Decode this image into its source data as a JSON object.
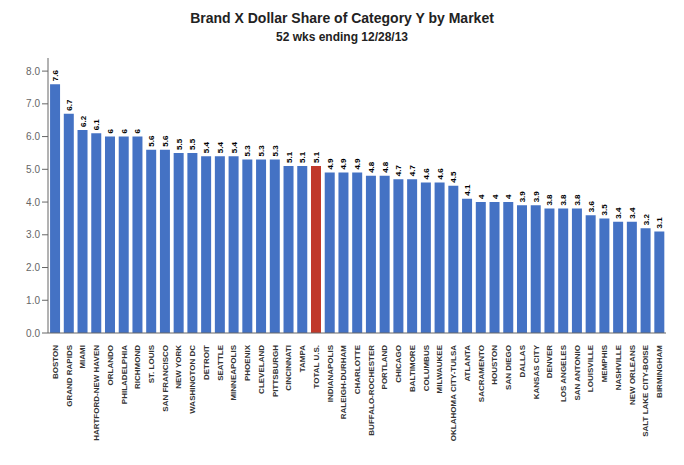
{
  "chart_data": {
    "type": "bar",
    "title": "Brand X Dollar Share of Category Y by Market",
    "subtitle": "52 wks ending 12/28/13",
    "categories": [
      "BOSTON",
      "GRAND RAPIDS",
      "MIAMI",
      "HARTFORD-NEW HAVEN",
      "ORLANDO",
      "PHILADELPHIA",
      "RICHMOND",
      "ST. LOUIS",
      "SAN FRANCISCO",
      "NEW YORK",
      "WASHINGTON DC",
      "DETROIT",
      "SEATTLE",
      "MINNEAPOLIS",
      "PHOENIX",
      "CLEVELAND",
      "PITTSBURGH",
      "CINCINNATI",
      "TAMPA",
      "TOTAL U.S.",
      "INDIANAPOLIS",
      "RALEIGH-DURHAM",
      "CHARLOTTE",
      "BUFFALO-ROCHESTER",
      "PORTLAND",
      "CHICAGO",
      "BALTIMORE",
      "COLUMBUS",
      "MILWAUKEE",
      "OKLAHOMA CITY-TULSA",
      "ATLANTA",
      "SACRAMENTO",
      "HOUSTON",
      "SAN DIEGO",
      "DALLAS",
      "KANSAS CITY",
      "DENVER",
      "LOS ANGELES",
      "SAN ANTONIO",
      "LOUISVILLE",
      "MEMPHIS",
      "NASHVILLE",
      "NEW ORLEANS",
      "SALT LAKE CITY-BOISE",
      "BIRMINGHAM"
    ],
    "values": [
      7.6,
      6.7,
      6.2,
      6.1,
      6.0,
      6.0,
      6.0,
      5.6,
      5.6,
      5.5,
      5.5,
      5.4,
      5.4,
      5.4,
      5.3,
      5.3,
      5.3,
      5.1,
      5.1,
      5.1,
      4.9,
      4.9,
      4.9,
      4.8,
      4.8,
      4.7,
      4.7,
      4.6,
      4.6,
      4.5,
      4.1,
      4.0,
      4.0,
      4.0,
      3.9,
      3.9,
      3.8,
      3.8,
      3.8,
      3.6,
      3.5,
      3.4,
      3.4,
      3.2,
      3.1
    ],
    "colors": [
      "#4472C4",
      "#4472C4",
      "#4472C4",
      "#4472C4",
      "#4472C4",
      "#4472C4",
      "#4472C4",
      "#4472C4",
      "#4472C4",
      "#4472C4",
      "#4472C4",
      "#4472C4",
      "#4472C4",
      "#4472C4",
      "#4472C4",
      "#4472C4",
      "#4472C4",
      "#4472C4",
      "#4472C4",
      "#C0392B",
      "#4472C4",
      "#4472C4",
      "#4472C4",
      "#4472C4",
      "#4472C4",
      "#4472C4",
      "#4472C4",
      "#4472C4",
      "#4472C4",
      "#4472C4",
      "#4472C4",
      "#4472C4",
      "#4472C4",
      "#4472C4",
      "#4472C4",
      "#4472C4",
      "#4472C4",
      "#4472C4",
      "#4472C4",
      "#4472C4",
      "#4472C4",
      "#4472C4",
      "#4472C4",
      "#4472C4",
      "#4472C4"
    ],
    "ylim": [
      0,
      8.4
    ],
    "yticks": [
      {
        "value": 0,
        "label": "0.0"
      },
      {
        "value": 1,
        "label": "1.0"
      },
      {
        "value": 2,
        "label": "2.0"
      },
      {
        "value": 3,
        "label": "3.0"
      },
      {
        "value": 4,
        "label": "4.0"
      },
      {
        "value": 5,
        "label": "5.0"
      },
      {
        "value": 6,
        "label": "6.0"
      },
      {
        "value": 7,
        "label": "7.0"
      },
      {
        "value": 8,
        "label": "8.0"
      }
    ],
    "data_labels": true,
    "grid": false
  }
}
